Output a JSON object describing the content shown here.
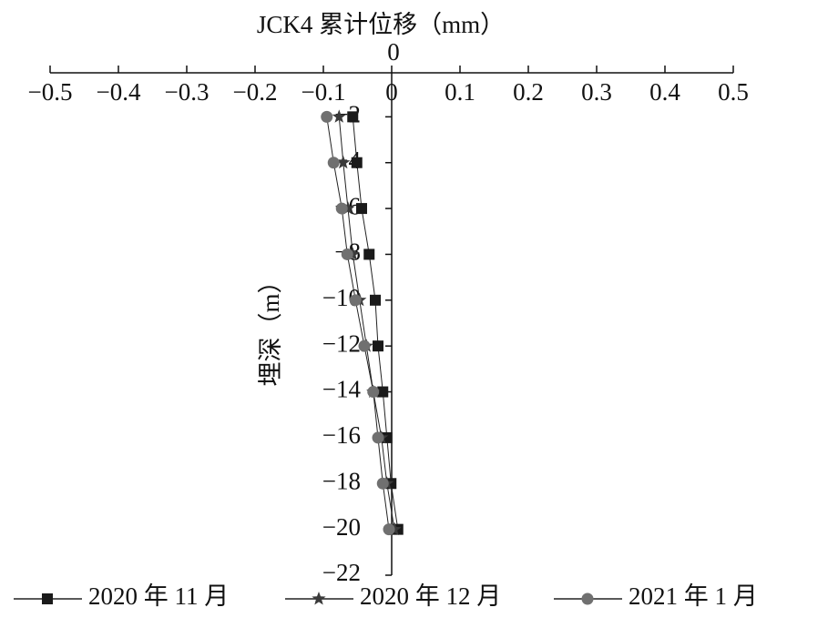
{
  "chart_data": {
    "type": "line",
    "title": "JCK4 累计位移（mm）",
    "y_label": "埋深（m）",
    "depths": [
      -2,
      -4,
      -6,
      -8,
      -10,
      -12,
      -14,
      -16,
      -18,
      -20
    ],
    "series": [
      {
        "name": "2020 年 11 月",
        "color": "#1a1a1a",
        "marker": "square",
        "values": [
          -0.057,
          -0.051,
          -0.044,
          -0.033,
          -0.024,
          -0.02,
          -0.013,
          -0.007,
          -0.001,
          0.009
        ]
      },
      {
        "name": "2020 年 12 月",
        "color": "#3a3a3a",
        "marker": "star",
        "values": [
          -0.077,
          -0.071,
          -0.064,
          -0.057,
          -0.047,
          -0.037,
          -0.027,
          -0.015,
          -0.007,
          0.004
        ]
      },
      {
        "name": "2021 年 1 月",
        "color": "#707070",
        "marker": "circle",
        "values": [
          -0.095,
          -0.085,
          -0.073,
          -0.065,
          -0.053,
          -0.04,
          -0.027,
          -0.02,
          -0.013,
          -0.004
        ]
      }
    ],
    "xlim": [
      -0.5,
      0.5
    ],
    "xticks": [
      {
        "value": -0.5,
        "label": "−0.5"
      },
      {
        "value": -0.4,
        "label": "−0.4"
      },
      {
        "value": -0.3,
        "label": "−0.3"
      },
      {
        "value": -0.2,
        "label": "−0.2"
      },
      {
        "value": -0.1,
        "label": "−0.1"
      },
      0,
      0.1,
      0.2,
      0.3,
      0.4,
      0.5
    ],
    "ylim": [
      0,
      -22
    ],
    "yticks": [
      0,
      {
        "value": -2,
        "label": "−2"
      },
      {
        "value": -4,
        "label": "−4"
      },
      {
        "value": -6,
        "label": "−6"
      },
      {
        "value": -8,
        "label": "−8"
      },
      {
        "value": -10,
        "label": "−10"
      },
      {
        "value": -12,
        "label": "−12"
      },
      {
        "value": -14,
        "label": "−14"
      },
      {
        "value": -16,
        "label": "−16"
      },
      {
        "value": -18,
        "label": "−18"
      },
      {
        "value": -20,
        "label": "−20"
      },
      {
        "value": -22,
        "label": "−22"
      }
    ]
  }
}
